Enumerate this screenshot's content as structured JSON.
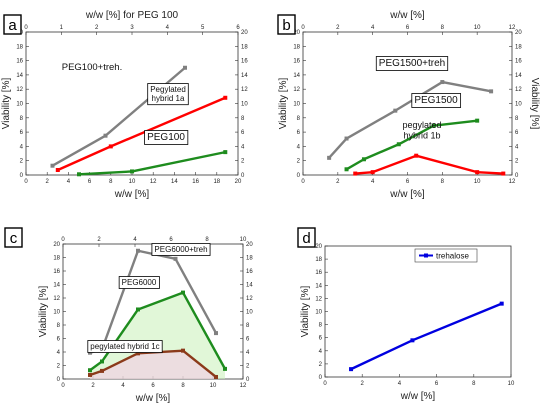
{
  "chart_data": [
    {
      "panel": "a",
      "type": "line",
      "xlabel": "w/w [%]",
      "ylabel": "Viability [%]",
      "right_ylabel": "",
      "top_xlabel": "w/w [%] for PEG 100",
      "xlim": [
        0,
        20
      ],
      "ylim": [
        0,
        20
      ],
      "top_xlim": [
        0,
        6
      ],
      "right_ylim": [
        0,
        20
      ],
      "xticks": [
        0,
        2,
        4,
        6,
        8,
        10,
        12,
        14,
        16,
        18,
        20
      ],
      "yticks": [
        0,
        2,
        4,
        6,
        8,
        10,
        12,
        14,
        16,
        18,
        20
      ],
      "top_xticks": [
        0,
        1,
        2,
        3,
        4,
        5,
        6
      ],
      "right_yticks": [
        0,
        2,
        4,
        6,
        8,
        10,
        12,
        14,
        16,
        18,
        20
      ],
      "series": [
        {
          "name": "PEG100+treh.",
          "color": "#808080",
          "x": [
            2.5,
            7.5,
            15
          ],
          "y": [
            1.3,
            5.5,
            15
          ]
        },
        {
          "name": "Pegylated hybrid 1a",
          "color": "#ff0000",
          "x": [
            3,
            8,
            18.8
          ],
          "y": [
            0.7,
            4,
            10.8
          ]
        },
        {
          "name": "PEG100",
          "color": "#1e8c1e",
          "x": [
            5,
            10,
            18.8
          ],
          "y": [
            0.1,
            0.5,
            3.2
          ]
        }
      ],
      "annotations": [
        {
          "text": "PEG100+treh.",
          "boxed": false
        },
        {
          "text": "Pegylated hybrid 1a",
          "boxed": true
        },
        {
          "text": "PEG100",
          "boxed": true
        }
      ]
    },
    {
      "panel": "b",
      "type": "line",
      "xlabel": "w/w [%]",
      "ylabel": "Viability [%]",
      "right_ylabel": "Viability [%]",
      "top_xlabel": "w/w [%]",
      "xlim": [
        0,
        12
      ],
      "ylim": [
        0,
        20
      ],
      "top_xlim": [
        0,
        12
      ],
      "right_ylim": [
        0,
        20
      ],
      "xticks": [
        0,
        2,
        4,
        6,
        8,
        10,
        12
      ],
      "yticks": [
        0,
        2,
        4,
        6,
        8,
        10,
        12,
        14,
        16,
        18,
        20
      ],
      "top_xticks": [
        0,
        2,
        4,
        6,
        8,
        10,
        12
      ],
      "right_yticks": [
        0,
        2,
        4,
        6,
        8,
        10,
        12,
        14,
        16,
        18,
        20
      ],
      "series": [
        {
          "name": "PEG1500+treh",
          "color": "#808080",
          "x": [
            1.5,
            2.5,
            5.3,
            8,
            10.8
          ],
          "y": [
            2.4,
            5.1,
            9,
            13,
            11.7
          ]
        },
        {
          "name": "PEG1500",
          "color": "#1e8c1e",
          "x": [
            2.5,
            3.5,
            5.5,
            7.5,
            10
          ],
          "y": [
            0.8,
            2.2,
            4.3,
            6.9,
            7.6
          ]
        },
        {
          "name": "pegylated hybrid 1b",
          "color": "#ff0000",
          "x": [
            3,
            4,
            6.5,
            10,
            11.5
          ],
          "y": [
            0.2,
            0.4,
            2.7,
            0.4,
            0.2
          ]
        }
      ],
      "annotations": [
        {
          "text": "PEG1500+treh",
          "boxed": true
        },
        {
          "text": "PEG1500",
          "boxed": true
        },
        {
          "text": "pegylated hybrid 1b",
          "boxed": false
        }
      ]
    },
    {
      "panel": "c",
      "type": "line",
      "xlabel": "w/w [%]",
      "ylabel": "Viability [%]",
      "right_ylabel": "",
      "top_xlabel": "",
      "xlim": [
        0,
        12
      ],
      "ylim": [
        0,
        20
      ],
      "top_xlim": [
        0,
        10
      ],
      "right_ylim": [
        0,
        20
      ],
      "xticks": [
        0,
        2,
        4,
        6,
        8,
        10,
        12
      ],
      "yticks": [
        0,
        2,
        4,
        6,
        8,
        10,
        12,
        14,
        16,
        18,
        20
      ],
      "top_xticks": [
        0,
        2,
        4,
        6,
        8,
        10
      ],
      "right_yticks": [
        0,
        2,
        4,
        6,
        8,
        10,
        12,
        14,
        16,
        18,
        20
      ],
      "series": [
        {
          "name": "PEG6000+treh",
          "color": "#808080",
          "x": [
            1.8,
            2.6,
            5,
            7.5,
            10.2
          ],
          "y": [
            3.9,
            4.4,
            19,
            17.8,
            6.8
          ]
        },
        {
          "name": "PEG6000",
          "color": "#1e8c1e",
          "x": [
            1.8,
            2.6,
            5,
            8,
            10.8
          ],
          "y": [
            1.3,
            2.6,
            10.3,
            12.8,
            1.5
          ]
        },
        {
          "name": "pegylated hybrid 1c",
          "color": "#8b3a1a",
          "x": [
            1.8,
            2.6,
            5,
            8,
            10.2
          ],
          "y": [
            0.6,
            1.2,
            3.8,
            4.2,
            0.3
          ]
        }
      ],
      "annotations": [
        {
          "text": "PEG6000+treh",
          "boxed": true
        },
        {
          "text": "PEG6000",
          "boxed": true
        },
        {
          "text": "pegylated hybrid 1c",
          "boxed": true
        }
      ]
    },
    {
      "panel": "d",
      "type": "line",
      "xlabel": "w/w [%]",
      "ylabel": "Viability [%]",
      "right_ylabel": "",
      "top_xlabel": "",
      "xlim": [
        0,
        10
      ],
      "ylim": [
        0,
        20
      ],
      "xticks": [
        0,
        2,
        4,
        6,
        8,
        10
      ],
      "yticks": [
        0,
        2,
        4,
        6,
        8,
        10,
        12,
        14,
        16,
        18,
        20
      ],
      "legend": "top-right",
      "series": [
        {
          "name": "trehalose",
          "color": "#0000e0",
          "x": [
            1.4,
            4.7,
            9.5
          ],
          "y": [
            1.2,
            5.6,
            11.2
          ]
        }
      ],
      "annotations": []
    }
  ]
}
